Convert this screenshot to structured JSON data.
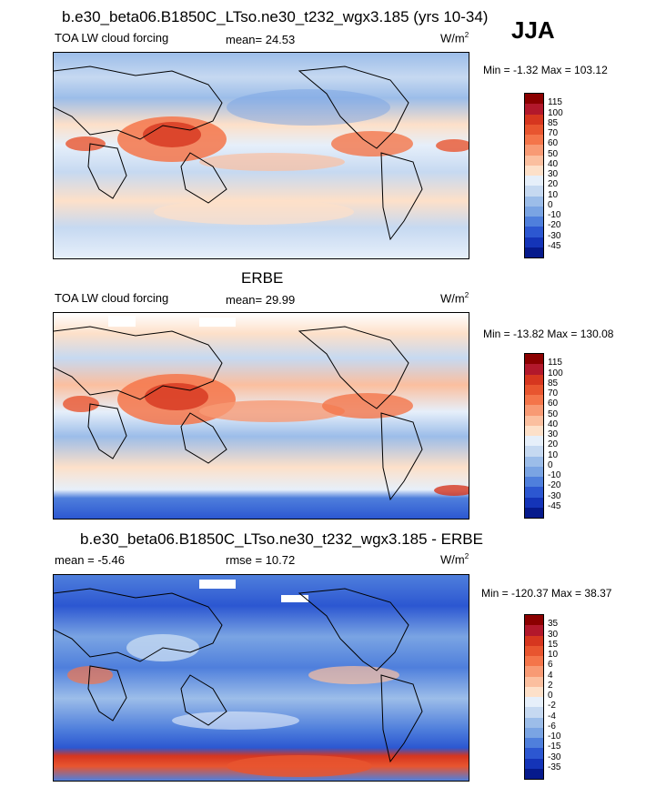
{
  "header": {
    "season": "JJA"
  },
  "panels": [
    {
      "id": "model",
      "title": "b.e30_beta06.B1850C_LTso.ne30_t232_wgx3.185 (yrs 10-34)",
      "left_label": "TOA LW cloud forcing",
      "center_label": "mean=  24.53",
      "units_base": "W/m",
      "units_exp": "2",
      "minmax": "Min =  -1.32 Max = 103.12"
    },
    {
      "id": "obs",
      "title": "ERBE",
      "left_label": "TOA LW cloud forcing",
      "center_label": "mean=  29.99",
      "units_base": "W/m",
      "units_exp": "2",
      "minmax": "Min = -13.82 Max = 130.08"
    },
    {
      "id": "diff",
      "title": "b.e30_beta06.B1850C_LTso.ne30_t232_wgx3.185 - ERBE",
      "left_label": "mean =  -5.46",
      "center_label": "rmse =  10.72",
      "units_base": "W/m",
      "units_exp": "2",
      "minmax": "Min = -120.37 Max =  38.37"
    }
  ],
  "colorbars": {
    "abs": {
      "labels": [
        "115",
        "100",
        "85",
        "70",
        "60",
        "50",
        "40",
        "30",
        "20",
        "10",
        "0",
        "-10",
        "-20",
        "-30",
        "-45"
      ],
      "colors": [
        "#8b0000",
        "#b2182b",
        "#d6361f",
        "#e8552f",
        "#f4754a",
        "#f89a74",
        "#fbbf9f",
        "#fde0c9",
        "#e6effa",
        "#c6d9f1",
        "#9cbde9",
        "#7aa4e3",
        "#4f7fdc",
        "#2c57d1",
        "#1434b8",
        "#061a8c"
      ]
    },
    "diff": {
      "labels": [
        "35",
        "30",
        "15",
        "10",
        "6",
        "4",
        "2",
        "0",
        "-2",
        "-4",
        "-6",
        "-10",
        "-15",
        "-30",
        "-35"
      ],
      "colors": [
        "#8b0000",
        "#b2182b",
        "#d6361f",
        "#e8552f",
        "#f4754a",
        "#f89a74",
        "#fbbf9f",
        "#fde0c9",
        "#e6effa",
        "#c6d9f1",
        "#9cbde9",
        "#7aa4e3",
        "#4f7fdc",
        "#2c57d1",
        "#1434b8",
        "#061a8c"
      ]
    }
  },
  "chart_data": [
    {
      "type": "heatmap",
      "title": "b.e30_beta06.B1850C_LTso.ne30_t232_wgx3.185 (yrs 10-34)",
      "variable": "TOA LW cloud forcing",
      "units": "W/m2",
      "mean": 24.53,
      "min": -1.32,
      "max": 103.12,
      "levels": [
        -45,
        -30,
        -20,
        -10,
        0,
        10,
        20,
        30,
        40,
        50,
        60,
        70,
        85,
        100,
        115
      ]
    },
    {
      "type": "heatmap",
      "title": "ERBE",
      "variable": "TOA LW cloud forcing",
      "units": "W/m2",
      "mean": 29.99,
      "min": -13.82,
      "max": 130.08,
      "levels": [
        -45,
        -30,
        -20,
        -10,
        0,
        10,
        20,
        30,
        40,
        50,
        60,
        70,
        85,
        100,
        115
      ]
    },
    {
      "type": "heatmap",
      "title": "b.e30_beta06.B1850C_LTso.ne30_t232_wgx3.185 - ERBE",
      "units": "W/m2",
      "mean": -5.46,
      "rmse": 10.72,
      "min": -120.37,
      "max": 38.37,
      "levels": [
        -35,
        -30,
        -15,
        -10,
        -6,
        -4,
        -2,
        0,
        2,
        4,
        6,
        10,
        15,
        30,
        35
      ]
    }
  ]
}
